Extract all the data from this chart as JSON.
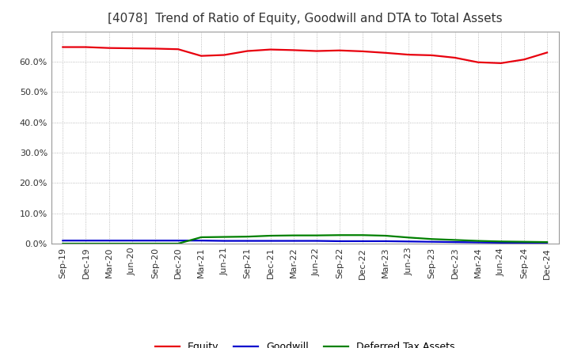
{
  "title": "[4078]  Trend of Ratio of Equity, Goodwill and DTA to Total Assets",
  "x_labels": [
    "Sep-19",
    "Dec-19",
    "Mar-20",
    "Jun-20",
    "Sep-20",
    "Dec-20",
    "Mar-21",
    "Jun-21",
    "Sep-21",
    "Dec-21",
    "Mar-22",
    "Jun-22",
    "Sep-22",
    "Dec-22",
    "Mar-23",
    "Jun-23",
    "Sep-23",
    "Dec-23",
    "Mar-24",
    "Jun-24",
    "Sep-24",
    "Dec-24"
  ],
  "equity": [
    0.648,
    0.648,
    0.645,
    0.644,
    0.643,
    0.641,
    0.619,
    0.622,
    0.635,
    0.64,
    0.638,
    0.635,
    0.637,
    0.634,
    0.629,
    0.623,
    0.621,
    0.613,
    0.598,
    0.595,
    0.607,
    0.63
  ],
  "goodwill": [
    0.01,
    0.01,
    0.01,
    0.01,
    0.01,
    0.01,
    0.01,
    0.009,
    0.009,
    0.009,
    0.009,
    0.009,
    0.008,
    0.008,
    0.008,
    0.007,
    0.006,
    0.005,
    0.004,
    0.003,
    0.003,
    0.003
  ],
  "dta": [
    0.0,
    0.0,
    0.0,
    0.0,
    0.0,
    0.0,
    0.021,
    0.022,
    0.023,
    0.026,
    0.027,
    0.027,
    0.028,
    0.028,
    0.026,
    0.02,
    0.015,
    0.012,
    0.009,
    0.007,
    0.006,
    0.005
  ],
  "equity_color": "#e8000d",
  "goodwill_color": "#0000cd",
  "dta_color": "#008000",
  "background_color": "#ffffff",
  "grid_color": "#aaaaaa",
  "ylim": [
    0.0,
    0.7
  ],
  "yticks": [
    0.0,
    0.1,
    0.2,
    0.3,
    0.4,
    0.5,
    0.6
  ],
  "legend_equity": "Equity",
  "legend_goodwill": "Goodwill",
  "legend_dta": "Deferred Tax Assets",
  "title_fontsize": 11,
  "label_fontsize": 8,
  "line_width": 1.6
}
